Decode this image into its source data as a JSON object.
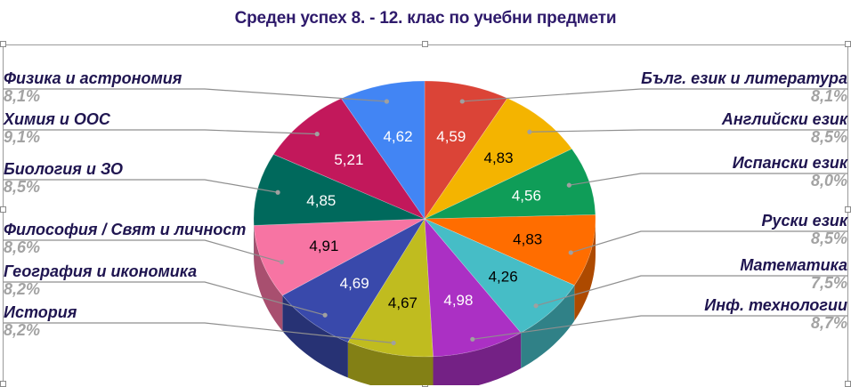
{
  "chart": {
    "title": "Среден успех 8. - 12. клас по учебни предмети"
  },
  "labels": [
    {
      "name": "Бълг. език и литература",
      "pct": "8,1%",
      "value": "4,59"
    },
    {
      "name": "Английски език",
      "pct": "8,5%",
      "value": "4,83"
    },
    {
      "name": "Испански език",
      "pct": "8,0%",
      "value": "4,56"
    },
    {
      "name": "Руски език",
      "pct": "8,5%",
      "value": "4,83"
    },
    {
      "name": "Математика",
      "pct": "7,5%",
      "value": "4,26"
    },
    {
      "name": "Инф. технологии",
      "pct": "8,7%",
      "value": "4,98"
    },
    {
      "name": "История",
      "pct": "8,2%",
      "value": "4,67"
    },
    {
      "name": "География и икономика",
      "pct": "8,2%",
      "value": "4,69"
    },
    {
      "name": "Философия / Свят и личност",
      "pct": "8,6%",
      "value": "4,91"
    },
    {
      "name": "Биология и ЗО",
      "pct": "8,5%",
      "value": "4,85"
    },
    {
      "name": "Химия и ООС",
      "pct": "9,1%",
      "value": "5,21"
    },
    {
      "name": "Физика и астрономия",
      "pct": "8,1%",
      "value": "4,62"
    }
  ],
  "chart_data": {
    "type": "pie",
    "title": "Среден успех 8. - 12. клас по учебни предмети",
    "style": "3d-pie",
    "start_angle": "12 o'clock, clockwise",
    "categories": [
      "Бълг. език и литература",
      "Английски език",
      "Испански език",
      "Руски език",
      "Математика",
      "Инф. технологии",
      "История",
      "География и икономика",
      "Философия / Свят и личност",
      "Биология и ЗО",
      "Химия и ООС",
      "Физика и астрономия"
    ],
    "values": [
      4.59,
      4.83,
      4.56,
      4.83,
      4.26,
      4.98,
      4.67,
      4.69,
      4.91,
      4.85,
      5.21,
      4.62
    ],
    "percentages": [
      8.1,
      8.5,
      8.0,
      8.5,
      7.5,
      8.7,
      8.2,
      8.2,
      8.6,
      8.5,
      9.1,
      8.1
    ],
    "colors": [
      "#db4437",
      "#f4b400",
      "#0f9d58",
      "#ff6d00",
      "#46bdc6",
      "#ab30c4",
      "#c0bc1f",
      "#3949ab",
      "#f774a3",
      "#00695c",
      "#c2185b",
      "#4285f4"
    ],
    "label_text_colors": [
      "#ffffff",
      "#000000",
      "#ffffff",
      "#000000",
      "#000000",
      "#ffffff",
      "#000000",
      "#ffffff",
      "#000000",
      "#ffffff",
      "#ffffff",
      "#ffffff"
    ],
    "legend": "outside labels with leader lines (name + percent)"
  }
}
